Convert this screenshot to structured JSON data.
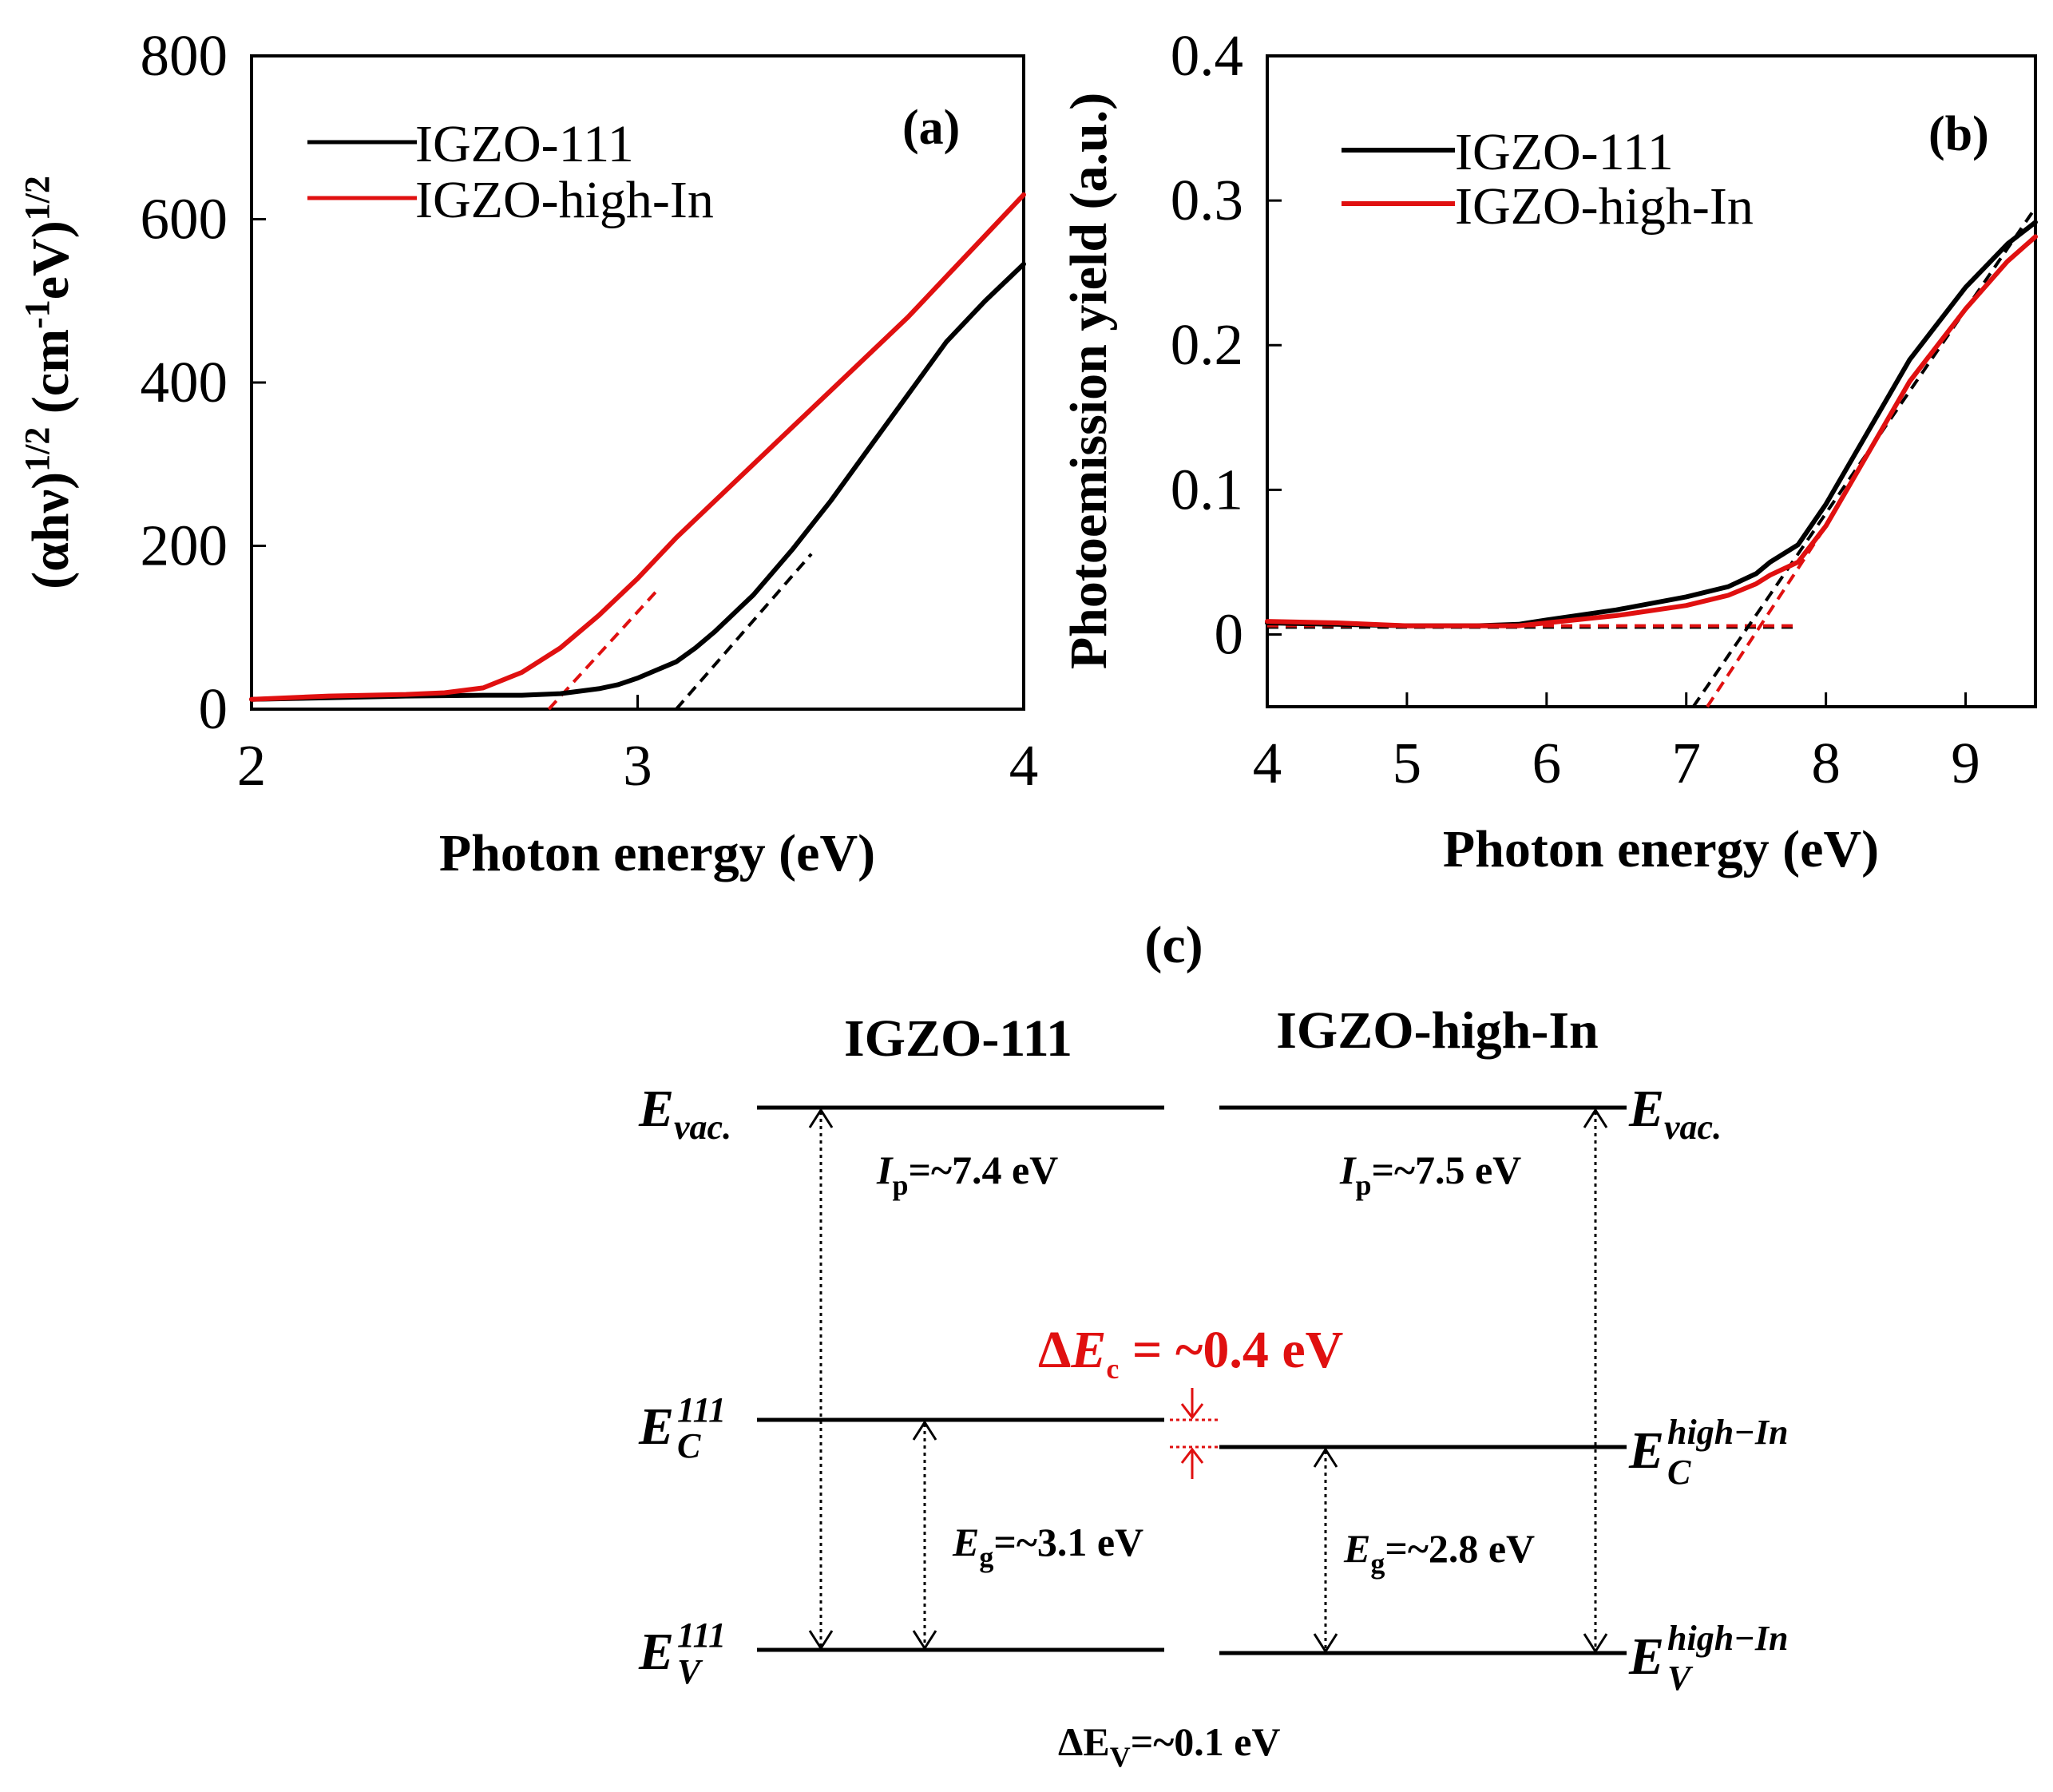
{
  "colors": {
    "igzo111": "#000000",
    "high_in": "#e01010",
    "delta": "#e01010"
  },
  "chart_data": [
    {
      "type": "line",
      "panel_label": "(a)",
      "xlabel": "Photon energy (eV)",
      "ylabel_parts": {
        "base": "(αhν)",
        "exp1": "1/2",
        "mid": " (cm",
        "exp2": "-1",
        "tail": "eV)",
        "exp3": "1/2"
      },
      "xlim": [
        2,
        4
      ],
      "ylim": [
        0,
        800
      ],
      "xticks": [
        2,
        3,
        4
      ],
      "yticks": [
        0,
        200,
        400,
        600,
        800
      ],
      "xtick_labels": [
        "2",
        "3",
        "4"
      ],
      "ytick_labels": [
        "0",
        "200",
        "400",
        "600",
        "800"
      ],
      "legend": [
        "IGZO-111",
        "IGZO-high-In"
      ],
      "series": [
        {
          "name": "IGZO-111",
          "color": "#000000",
          "x": [
            2.0,
            2.2,
            2.4,
            2.6,
            2.7,
            2.8,
            2.85,
            2.9,
            2.95,
            3.0,
            3.05,
            3.1,
            3.15,
            3.2,
            3.3,
            3.4,
            3.5,
            3.6,
            3.7,
            3.8,
            3.9,
            4.0
          ],
          "y": [
            12,
            14,
            16,
            17,
            17,
            19,
            22,
            25,
            30,
            38,
            48,
            58,
            75,
            95,
            140,
            195,
            255,
            320,
            385,
            450,
            500,
            545
          ]
        },
        {
          "name": "IGZO-high-In",
          "color": "#e01010",
          "x": [
            2.0,
            2.2,
            2.4,
            2.5,
            2.6,
            2.7,
            2.8,
            2.9,
            3.0,
            3.1,
            3.2,
            3.3,
            3.4,
            3.5,
            3.6,
            3.7,
            3.8,
            3.9,
            4.0
          ],
          "y": [
            12,
            16,
            18,
            20,
            26,
            45,
            75,
            115,
            160,
            210,
            255,
            300,
            345,
            390,
            435,
            480,
            530,
            580,
            630
          ]
        }
      ],
      "fits": [
        {
          "color": "#000000",
          "x": [
            3.1,
            3.45
          ],
          "y": [
            0,
            190
          ]
        },
        {
          "color": "#e01010",
          "x": [
            2.77,
            3.05
          ],
          "y": [
            0,
            145
          ]
        }
      ]
    },
    {
      "type": "line",
      "panel_label": "(b)",
      "xlabel": "Photon energy (eV)",
      "ylabel": "Photoemission yield (a.u.)",
      "xlim": [
        4,
        9.5
      ],
      "ylim": [
        -0.05,
        0.4
      ],
      "xticks": [
        4,
        5,
        6,
        7,
        8,
        9
      ],
      "yticks": [
        0,
        0.1,
        0.2,
        0.3,
        0.4
      ],
      "xtick_labels": [
        "4",
        "5",
        "6",
        "7",
        "8",
        "9"
      ],
      "ytick_labels": [
        "0",
        "0.1",
        "0.2",
        "0.3",
        "0.4"
      ],
      "legend": [
        "IGZO-111",
        "IGZO-high-In"
      ],
      "series": [
        {
          "name": "IGZO-111",
          "color": "#000000",
          "x": [
            4.0,
            4.5,
            5.0,
            5.5,
            5.8,
            6.0,
            6.5,
            7.0,
            7.3,
            7.5,
            7.6,
            7.8,
            8.0,
            8.3,
            8.6,
            9.0,
            9.3,
            9.5
          ],
          "y": [
            0.008,
            0.007,
            0.006,
            0.006,
            0.007,
            0.01,
            0.017,
            0.026,
            0.033,
            0.042,
            0.05,
            0.062,
            0.09,
            0.14,
            0.19,
            0.24,
            0.27,
            0.285
          ]
        },
        {
          "name": "IGZO-high-In",
          "color": "#e01010",
          "x": [
            4.0,
            4.5,
            5.0,
            5.5,
            5.8,
            6.0,
            6.5,
            7.0,
            7.3,
            7.5,
            7.6,
            7.8,
            8.0,
            8.3,
            8.6,
            9.0,
            9.3,
            9.5
          ],
          "y": [
            0.009,
            0.008,
            0.006,
            0.006,
            0.006,
            0.008,
            0.013,
            0.02,
            0.027,
            0.035,
            0.041,
            0.05,
            0.075,
            0.125,
            0.175,
            0.225,
            0.258,
            0.275
          ]
        }
      ],
      "fits": [
        {
          "color": "#000000",
          "x": [
            4.0,
            7.8
          ],
          "y": [
            0.005,
            0.005
          ]
        },
        {
          "color": "#e01010",
          "x": [
            4.0,
            7.8
          ],
          "y": [
            0.006,
            0.006
          ]
        },
        {
          "color": "#000000",
          "x": [
            7.05,
            9.5
          ],
          "y": [
            -0.05,
            0.295
          ]
        },
        {
          "color": "#e01010",
          "x": [
            7.15,
            8.0
          ],
          "y": [
            -0.05,
            0.075
          ]
        }
      ]
    }
  ],
  "diagram": {
    "panel_label": "(c)",
    "left_title": "IGZO-111",
    "right_title": "IGZO-high-In",
    "evac": {
      "base": "E",
      "sub": "vac."
    },
    "ec_left": {
      "base": "E",
      "sup": "111",
      "sub": "C"
    },
    "ev_left": {
      "base": "E",
      "sup": "111",
      "sub": "V"
    },
    "ec_right": {
      "base": "E",
      "sup": "high−In",
      "sub": "C"
    },
    "ev_right": {
      "base": "E",
      "sup": "high−In",
      "sub": "V"
    },
    "ip_left": {
      "sym": "I",
      "sub": "p",
      "val": "=~7.4 eV"
    },
    "ip_right": {
      "sym": "I",
      "sub": "p",
      "val": "=~7.5 eV"
    },
    "eg_left": {
      "sym": "E",
      "sub": "g",
      "val": "=~3.1 eV"
    },
    "eg_right": {
      "sym": "E",
      "sub": "g",
      "val": "=~2.8 eV"
    },
    "delta_ec": {
      "pre": "Δ",
      "sym": "E",
      "sub": "c",
      "val": " = ~0.4 eV"
    },
    "delta_ev": {
      "pre": "ΔE",
      "sub": "V",
      "val": "=~0.1 eV"
    }
  }
}
